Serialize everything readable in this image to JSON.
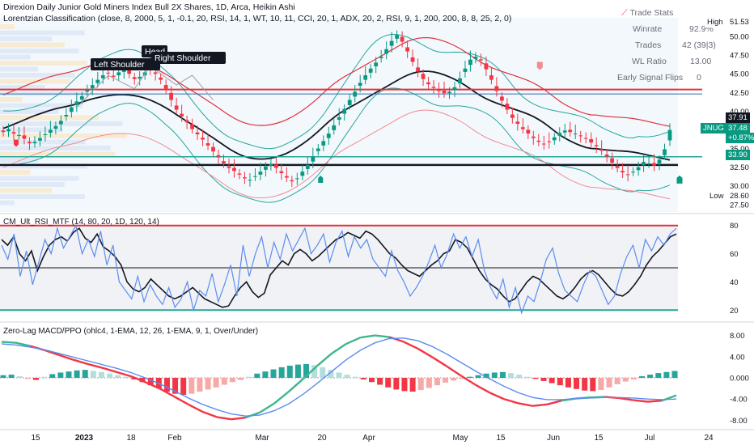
{
  "header": {
    "title": "Direxion Daily Junior Gold Miners Index Bull 2X Shares, 1D, Arca, Heikin Ashi",
    "indicator": "Lorentzian Classification (close, 8, 2000, 5, 1, -0.1, 20, RSI, 14, 1, WT, 10, 11, CCI, 20, 1, ADX, 20, 2, RSI, 9, 1, 200, 200, 8, 8, 25, 2, 0)"
  },
  "trade_stats": {
    "title": "Trade Stats",
    "rows": [
      {
        "label": "Winrate",
        "value": "92.9%"
      },
      {
        "label": "Trades",
        "value": "42 (39|3)"
      },
      {
        "label": "WL Ratio",
        "value": "13.00"
      },
      {
        "label": "Early Signal Flips",
        "value": "0"
      }
    ]
  },
  "annotations": {
    "left_shoulder": "Left Shoulder",
    "head": "Head",
    "right_shoulder": "Right Shoulder"
  },
  "price_scale": {
    "ticks": [
      "50.00",
      "47.50",
      "45.00",
      "42.50",
      "40.00",
      "35.00",
      "32.50",
      "30.00",
      "27.50"
    ],
    "high_label": "High",
    "high_value": "51.53",
    "low_label": "Low",
    "low_value": "28.60",
    "level_upper": "37.91",
    "ticker": "JNUG",
    "last": "37.48",
    "change": "+0.87%",
    "level_lower": "33.90"
  },
  "rsi_pane": {
    "title": "CM_Ult_RSI_MTF (14, 80, 20, 1D, 120, 14)",
    "ticks": [
      "80",
      "60",
      "40",
      "20"
    ]
  },
  "macd_pane": {
    "title": "Zero-Lag MACD/PPO (ohlc4, 1-EMA, 12, 26, 1-EMA, 9, 1, Over/Under)",
    "ticks": [
      "8.00",
      "4.00",
      "0.000",
      "-4.00",
      "-8.00"
    ]
  },
  "time_axis": [
    "15",
    "2023",
    "18",
    "Feb",
    "Mar",
    "20",
    "Apr",
    "May",
    "15",
    "Jun",
    "15",
    "Jul",
    "24"
  ],
  "colors": {
    "up": "#089981",
    "down": "#f23645",
    "resistance": "#e0323c",
    "support": "#26a69a",
    "blue": "#5b8def",
    "black": "#131722"
  },
  "chart_data": [
    {
      "type": "candlestick",
      "title": "Direxion Daily Junior Gold Miners Index Bull 2X Shares, 1D, Arca, Heikin Ashi",
      "ylim": [
        26.5,
        52.5
      ],
      "x": [
        "15",
        "2023",
        "18",
        "Feb",
        "Mar",
        "20",
        "Apr",
        "May",
        "15",
        "Jun",
        "15",
        "Jul",
        "24"
      ],
      "y_ticks": [
        50.0,
        47.5,
        45.0,
        42.5,
        40.0,
        35.0,
        32.5,
        30.0,
        27.5
      ],
      "closes": [
        37.2,
        37.6,
        37.0,
        36.8,
        36.3,
        35.7,
        35.9,
        36.4,
        36.9,
        37.5,
        38.0,
        38.7,
        39.5,
        40.5,
        41.3,
        42.0,
        42.8,
        43.5,
        44.2,
        44.8,
        45.1,
        44.6,
        45.2,
        45.5,
        45.0,
        44.3,
        44.6,
        45.2,
        45.6,
        45.0,
        44.2,
        43.0,
        41.5,
        40.2,
        39.3,
        38.5,
        37.6,
        36.9,
        36.2,
        35.4,
        34.6,
        33.8,
        33.0,
        32.4,
        32.0,
        31.5,
        31.0,
        30.8,
        31.3,
        31.9,
        32.6,
        32.9,
        32.4,
        31.7,
        31.1,
        30.6,
        31.0,
        31.9,
        32.8,
        33.9,
        35.0,
        36.0,
        37.0,
        38.1,
        39.2,
        40.3,
        41.5,
        42.6,
        43.8,
        44.8,
        45.7,
        46.5,
        47.3,
        48.3,
        49.4,
        50.2,
        49.3,
        48.0,
        46.6,
        45.3,
        44.3,
        43.6,
        43.1,
        42.7,
        42.4,
        42.6,
        43.2,
        44.4,
        45.7,
        46.9,
        47.3,
        46.8,
        45.6,
        44.2,
        42.7,
        41.4,
        40.2,
        39.1,
        38.3,
        37.6,
        37.0,
        36.4,
        35.9,
        35.6,
        35.9,
        36.5,
        37.1,
        37.4,
        37.2,
        37.0,
        36.7,
        36.3,
        35.8,
        35.3,
        34.7,
        33.9,
        33.1,
        32.4,
        31.8,
        31.5,
        31.9,
        32.5,
        33.2,
        33.0,
        32.7,
        33.5,
        34.9,
        37.48
      ],
      "levels": {
        "resistance": 42.9,
        "support_upper": 42.3,
        "support_lower": 33.9,
        "black_line": 32.8
      }
    },
    {
      "type": "line",
      "title": "CM_Ult_RSI_MTF (14, 80, 20, 1D, 120, 14)",
      "ylim": [
        15,
        85
      ],
      "y_ticks": [
        80,
        60,
        40,
        20
      ],
      "series": [
        {
          "values": [
            70,
            66,
            72,
            60,
            55,
            62,
            48,
            58,
            66,
            70,
            72,
            69,
            75,
            78,
            71,
            68,
            74,
            65,
            62,
            58,
            52,
            40,
            35,
            33,
            36,
            42,
            38,
            34,
            30,
            28,
            30,
            33,
            36,
            32,
            28,
            26,
            24,
            22,
            23,
            30,
            36,
            40,
            33,
            29,
            32,
            45,
            50,
            55,
            52,
            60,
            63,
            60,
            55,
            58,
            62,
            66,
            70,
            72,
            75,
            73,
            71,
            76,
            74,
            70,
            65,
            60,
            57,
            52,
            48,
            46,
            44,
            48,
            52,
            55,
            60,
            62,
            70,
            68,
            64,
            56,
            48,
            42,
            38,
            35,
            30,
            26,
            28,
            34,
            40,
            44,
            42,
            38,
            34,
            30,
            28,
            31,
            36,
            42,
            46,
            48,
            45,
            40,
            35,
            31,
            30,
            33,
            38,
            44,
            52,
            58,
            62,
            67,
            72,
            74
          ]
        },
        {
          "values": [
            66,
            56,
            74,
            44,
            62,
            38,
            54,
            70,
            60,
            78,
            64,
            72,
            80,
            60,
            70,
            58,
            76,
            52,
            66,
            40,
            34,
            28,
            44,
            26,
            38,
            30,
            24,
            36,
            22,
            28,
            40,
            20,
            34,
            30,
            46,
            26,
            38,
            52,
            30,
            66,
            44,
            60,
            72,
            50,
            68,
            56,
            74,
            62,
            70,
            78,
            60,
            66,
            74,
            54,
            68,
            76,
            58,
            72,
            64,
            70,
            56,
            50,
            44,
            62,
            48,
            40,
            30,
            36,
            44,
            54,
            66,
            50,
            60,
            74,
            64,
            72,
            58,
            70,
            48,
            36,
            28,
            42,
            22,
            36,
            18,
            30,
            26,
            40,
            56,
            64,
            46,
            34,
            30,
            26,
            38,
            48,
            44,
            34,
            24,
            30,
            46,
            58,
            66,
            50,
            70,
            62,
            72,
            66,
            74,
            78
          ]
        }
      ],
      "levels": {
        "upper": 80,
        "mid": 50,
        "lower": 20
      }
    },
    {
      "type": "bar",
      "title": "Zero-Lag MACD/PPO (ohlc4, 1-EMA, 12, 26, 1-EMA, 9, 1, Over/Under)",
      "ylim": [
        -9,
        9
      ],
      "y_ticks": [
        8.0,
        4.0,
        0.0,
        -4.0,
        -8.0
      ],
      "histogram": [
        0.5,
        0.6,
        0.3,
        -0.2,
        -0.4,
        0.2,
        0.7,
        1.0,
        1.2,
        1.4,
        1.5,
        1.3,
        1.1,
        0.8,
        0.5,
        0.2,
        -0.3,
        -0.8,
        -1.4,
        -2.0,
        -2.6,
        -3.0,
        -3.2,
        -3.0,
        -2.6,
        -2.2,
        -1.8,
        -1.3,
        -0.8,
        -0.4,
        0.2,
        0.8,
        1.2,
        1.6,
        2.0,
        2.3,
        2.5,
        2.6,
        2.4,
        2.0,
        1.5,
        1.0,
        0.6,
        0.2,
        -0.3,
        -0.8,
        -1.3,
        -1.8,
        -2.2,
        -2.5,
        -2.6,
        -2.3,
        -1.9,
        -1.4,
        -0.9,
        -0.5,
        -0.2,
        0.2,
        0.5,
        0.8,
        1.0,
        1.1,
        0.9,
        0.6,
        0.2,
        -0.2,
        -0.6,
        -1.0,
        -1.4,
        -1.8,
        -2.1,
        -2.4,
        -2.5,
        -2.3,
        -1.8,
        -1.2,
        -0.7,
        -0.3,
        0.3,
        0.6,
        0.9,
        1.1,
        1.3
      ],
      "series": [
        {
          "values": [
            6.8,
            6.6,
            6.0,
            5.2,
            4.3,
            3.4,
            2.6,
            1.9,
            1.1,
            0.3,
            -0.8,
            -2.0,
            -3.5,
            -5.0,
            -6.4,
            -7.4,
            -7.8,
            -7.5,
            -6.5,
            -4.8,
            -2.6,
            -0.2,
            2.3,
            4.6,
            6.4,
            7.6,
            8.0,
            7.7,
            6.8,
            5.5,
            3.9,
            2.2,
            0.4,
            -1.3,
            -2.8,
            -4.0,
            -4.8,
            -5.3,
            -5.0,
            -4.3,
            -3.9,
            -3.7,
            -3.6,
            -3.8,
            -4.2,
            -4.5,
            -4.3,
            -3.3
          ]
        },
        {
          "values": [
            6.4,
            6.2,
            5.8,
            5.3,
            4.6,
            3.9,
            3.2,
            2.5,
            1.8,
            1.0,
            0.0,
            -1.1,
            -2.4,
            -3.8,
            -5.0,
            -6.0,
            -6.8,
            -7.2,
            -7.0,
            -6.2,
            -4.9,
            -3.1,
            -1.0,
            1.2,
            3.4,
            5.2,
            6.6,
            7.4,
            7.5,
            7.0,
            5.9,
            4.5,
            2.9,
            1.3,
            -0.2,
            -1.6,
            -2.8,
            -3.7,
            -4.1,
            -4.1,
            -3.9,
            -3.8,
            -3.7,
            -3.7,
            -3.8,
            -4.0,
            -4.1,
            -4.0
          ]
        }
      ],
      "levels": {
        "zero": 0
      }
    }
  ]
}
